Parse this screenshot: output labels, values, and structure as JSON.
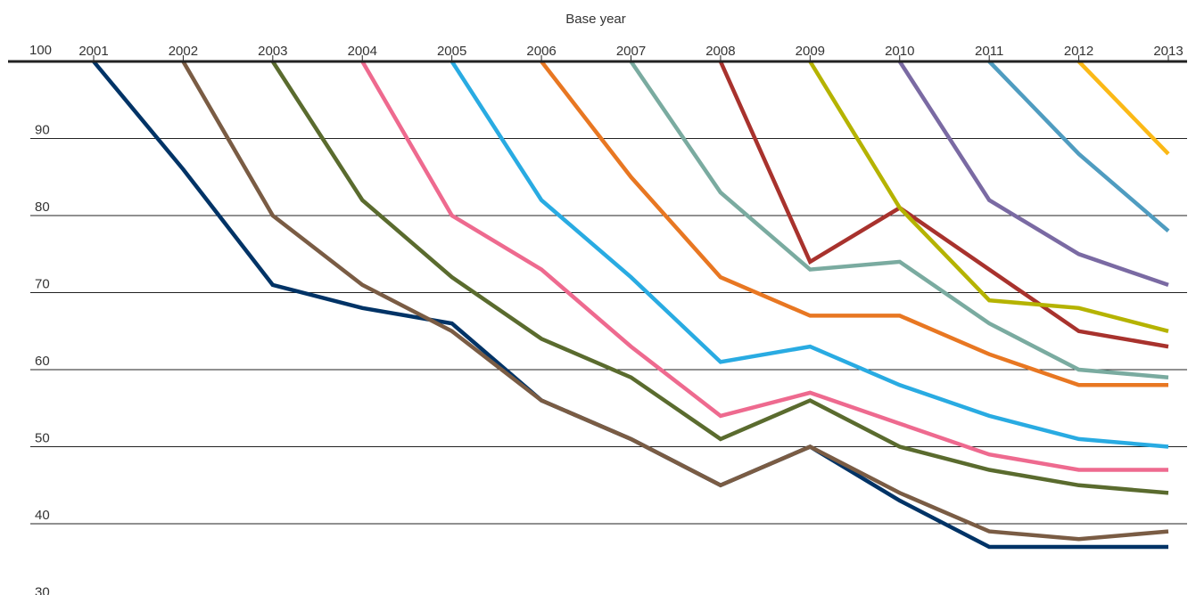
{
  "chart_data": {
    "type": "line",
    "title": "",
    "xlabel": "Base year",
    "ylabel": "",
    "x": [
      2001,
      2002,
      2003,
      2004,
      2005,
      2006,
      2007,
      2008,
      2009,
      2010,
      2011,
      2012,
      2013
    ],
    "x_tick_labels": [
      "2001",
      "2002",
      "2003",
      "2004",
      "2005",
      "2006",
      "2007",
      "2008",
      "2009",
      "2010",
      "2011",
      "2012",
      "2013"
    ],
    "y_ticks": [
      100,
      90,
      80,
      70,
      60,
      50,
      40,
      30
    ],
    "y_tick_labels": [
      "100",
      "90",
      "80",
      "70",
      "60",
      "50",
      "40",
      "30"
    ],
    "ylim": [
      30,
      100
    ],
    "xlim": [
      2001,
      2013
    ],
    "grid": true,
    "x_axis_position": "top",
    "legend": "none",
    "series": [
      {
        "color": "#003366",
        "x": [
          2001,
          2002,
          2003,
          2004,
          2005,
          2006,
          2007,
          2008,
          2009,
          2010,
          2011,
          2012,
          2013
        ],
        "values": [
          100,
          86,
          71,
          68,
          66,
          56,
          51,
          45,
          50,
          43,
          37,
          37,
          37
        ]
      },
      {
        "color": "#7a5c44",
        "x": [
          2002,
          2003,
          2004,
          2005,
          2006,
          2007,
          2008,
          2009,
          2010,
          2011,
          2012,
          2013
        ],
        "values": [
          100,
          80,
          71,
          65,
          56,
          51,
          45,
          50,
          44,
          39,
          38,
          39
        ]
      },
      {
        "color": "#5a6b2e",
        "x": [
          2003,
          2004,
          2005,
          2006,
          2007,
          2008,
          2009,
          2010,
          2011,
          2012,
          2013
        ],
        "values": [
          100,
          82,
          72,
          64,
          59,
          51,
          56,
          50,
          47,
          45,
          44
        ]
      },
      {
        "color": "#ee6a8f",
        "x": [
          2004,
          2005,
          2006,
          2007,
          2008,
          2009,
          2010,
          2011,
          2012,
          2013
        ],
        "values": [
          100,
          80,
          73,
          63,
          54,
          57,
          53,
          49,
          47,
          47
        ]
      },
      {
        "color": "#29abe2",
        "x": [
          2005,
          2006,
          2007,
          2008,
          2009,
          2010,
          2011,
          2012,
          2013
        ],
        "values": [
          100,
          82,
          72,
          61,
          63,
          58,
          54,
          51,
          50
        ]
      },
      {
        "color": "#e87722",
        "x": [
          2006,
          2007,
          2008,
          2009,
          2010,
          2011,
          2012,
          2013
        ],
        "values": [
          100,
          85,
          72,
          67,
          67,
          62,
          58,
          58
        ]
      },
      {
        "color": "#7aaba0",
        "x": [
          2007,
          2008,
          2009,
          2010,
          2011,
          2012,
          2013
        ],
        "values": [
          100,
          83,
          73,
          74,
          66,
          60,
          59
        ]
      },
      {
        "color": "#a8322d",
        "x": [
          2008,
          2009,
          2010,
          2011,
          2012,
          2013
        ],
        "values": [
          100,
          74,
          81,
          73,
          65,
          63
        ]
      },
      {
        "color": "#b5b300",
        "x": [
          2009,
          2010,
          2011,
          2012,
          2013
        ],
        "values": [
          100,
          81,
          69,
          68,
          65
        ]
      },
      {
        "color": "#7a6aa3",
        "x": [
          2010,
          2011,
          2012,
          2013
        ],
        "values": [
          100,
          82,
          75,
          71
        ]
      },
      {
        "color": "#4f9cc0",
        "x": [
          2011,
          2012,
          2013
        ],
        "values": [
          100,
          88,
          78
        ]
      },
      {
        "color": "#fbb917",
        "x": [
          2012,
          2013
        ],
        "values": [
          100,
          88
        ]
      }
    ]
  }
}
